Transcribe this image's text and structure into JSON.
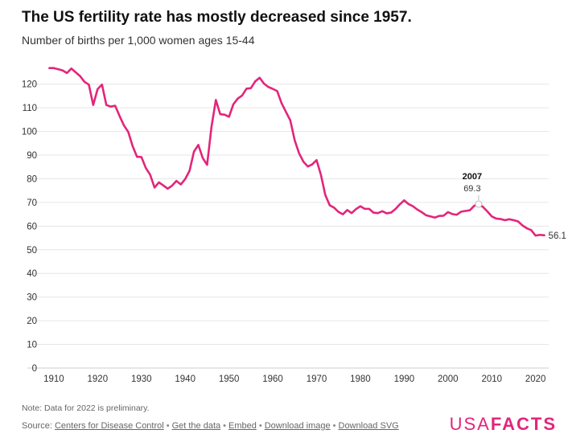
{
  "header": {
    "title": "The US fertility rate has mostly decreased since 1957.",
    "subtitle": "Number of births per 1,000 women ages 15-44"
  },
  "chart_data": {
    "type": "line",
    "title": "The US fertility rate has mostly decreased since 1957.",
    "subtitle": "Number of births per 1,000 women ages 15-44",
    "xlabel": "",
    "ylabel": "",
    "xlim": [
      1908,
      2023
    ],
    "ylim": [
      0,
      125
    ],
    "x_ticks": [
      1910,
      1920,
      1930,
      1940,
      1950,
      1960,
      1970,
      1980,
      1990,
      2000,
      2010,
      2020
    ],
    "y_ticks": [
      0,
      10,
      20,
      30,
      40,
      50,
      60,
      70,
      80,
      90,
      100,
      110,
      120
    ],
    "grid": "horizontal",
    "color": "#e3257b",
    "series": [
      {
        "x": [
          1909,
          1910,
          1911,
          1912,
          1913,
          1914,
          1915,
          1916,
          1917,
          1918,
          1919,
          1920,
          1921,
          1922,
          1923,
          1924,
          1925,
          1926,
          1927,
          1928,
          1929,
          1930,
          1931,
          1932,
          1933,
          1934,
          1935,
          1936,
          1937,
          1938,
          1939,
          1940,
          1941,
          1942,
          1943,
          1944,
          1945,
          1946,
          1947,
          1948,
          1949,
          1950,
          1951,
          1952,
          1953,
          1954,
          1955,
          1956,
          1957,
          1958,
          1959,
          1960,
          1961,
          1962,
          1963,
          1964,
          1965,
          1966,
          1967,
          1968,
          1969,
          1970,
          1971,
          1972,
          1973,
          1974,
          1975,
          1976,
          1977,
          1978,
          1979,
          1980,
          1981,
          1982,
          1983,
          1984,
          1985,
          1986,
          1987,
          1988,
          1989,
          1990,
          1991,
          1992,
          1993,
          1994,
          1995,
          1996,
          1997,
          1998,
          1999,
          2000,
          2001,
          2002,
          2003,
          2004,
          2005,
          2006,
          2007,
          2008,
          2009,
          2010,
          2011,
          2012,
          2013,
          2014,
          2015,
          2016,
          2017,
          2018,
          2019,
          2020,
          2021,
          2022
        ],
        "values": [
          126.8,
          126.8,
          126.3,
          125.8,
          124.7,
          126.6,
          125.0,
          123.4,
          121.0,
          119.8,
          111.2,
          117.9,
          119.8,
          111.2,
          110.5,
          110.9,
          106.6,
          102.6,
          99.8,
          93.8,
          89.3,
          89.2,
          84.6,
          81.7,
          76.3,
          78.5,
          77.2,
          75.8,
          77.1,
          79.1,
          77.6,
          79.9,
          83.4,
          91.5,
          94.3,
          88.8,
          85.9,
          101.9,
          113.3,
          107.3,
          107.1,
          106.2,
          111.5,
          113.9,
          115.2,
          118.1,
          118.3,
          121.2,
          122.7,
          120.2,
          118.8,
          118.0,
          117.1,
          112.0,
          108.3,
          104.7,
          96.3,
          90.8,
          87.2,
          85.2,
          86.1,
          87.9,
          81.6,
          73.1,
          68.8,
          67.8,
          66.0,
          65.0,
          66.8,
          65.5,
          67.2,
          68.4,
          67.3,
          67.3,
          65.7,
          65.5,
          66.3,
          65.4,
          65.7,
          67.2,
          69.2,
          70.9,
          69.3,
          68.4,
          67.0,
          65.9,
          64.6,
          64.1,
          63.6,
          64.3,
          64.4,
          65.9,
          65.1,
          64.8,
          66.1,
          66.4,
          66.7,
          68.6,
          69.3,
          68.1,
          66.2,
          64.1,
          63.2,
          63.0,
          62.5,
          62.9,
          62.5,
          62.0,
          60.3,
          59.1,
          58.3,
          56.0,
          56.3,
          56.1
        ]
      }
    ],
    "annotations": [
      {
        "x": 2007,
        "y": 69.3,
        "year_label": "2007",
        "value_label": "69.3"
      },
      {
        "x": 2022,
        "y": 56.1,
        "value_label": "56.1"
      }
    ]
  },
  "footer": {
    "note": "Note: Data for 2022 is preliminary.",
    "source_prefix": "Source:",
    "links": [
      "Centers for Disease Control",
      "Get the data",
      "Embed",
      "Download image",
      "Download SVG"
    ],
    "separator": "•"
  },
  "logo": {
    "part1": "USA",
    "part2": "FACTS"
  }
}
